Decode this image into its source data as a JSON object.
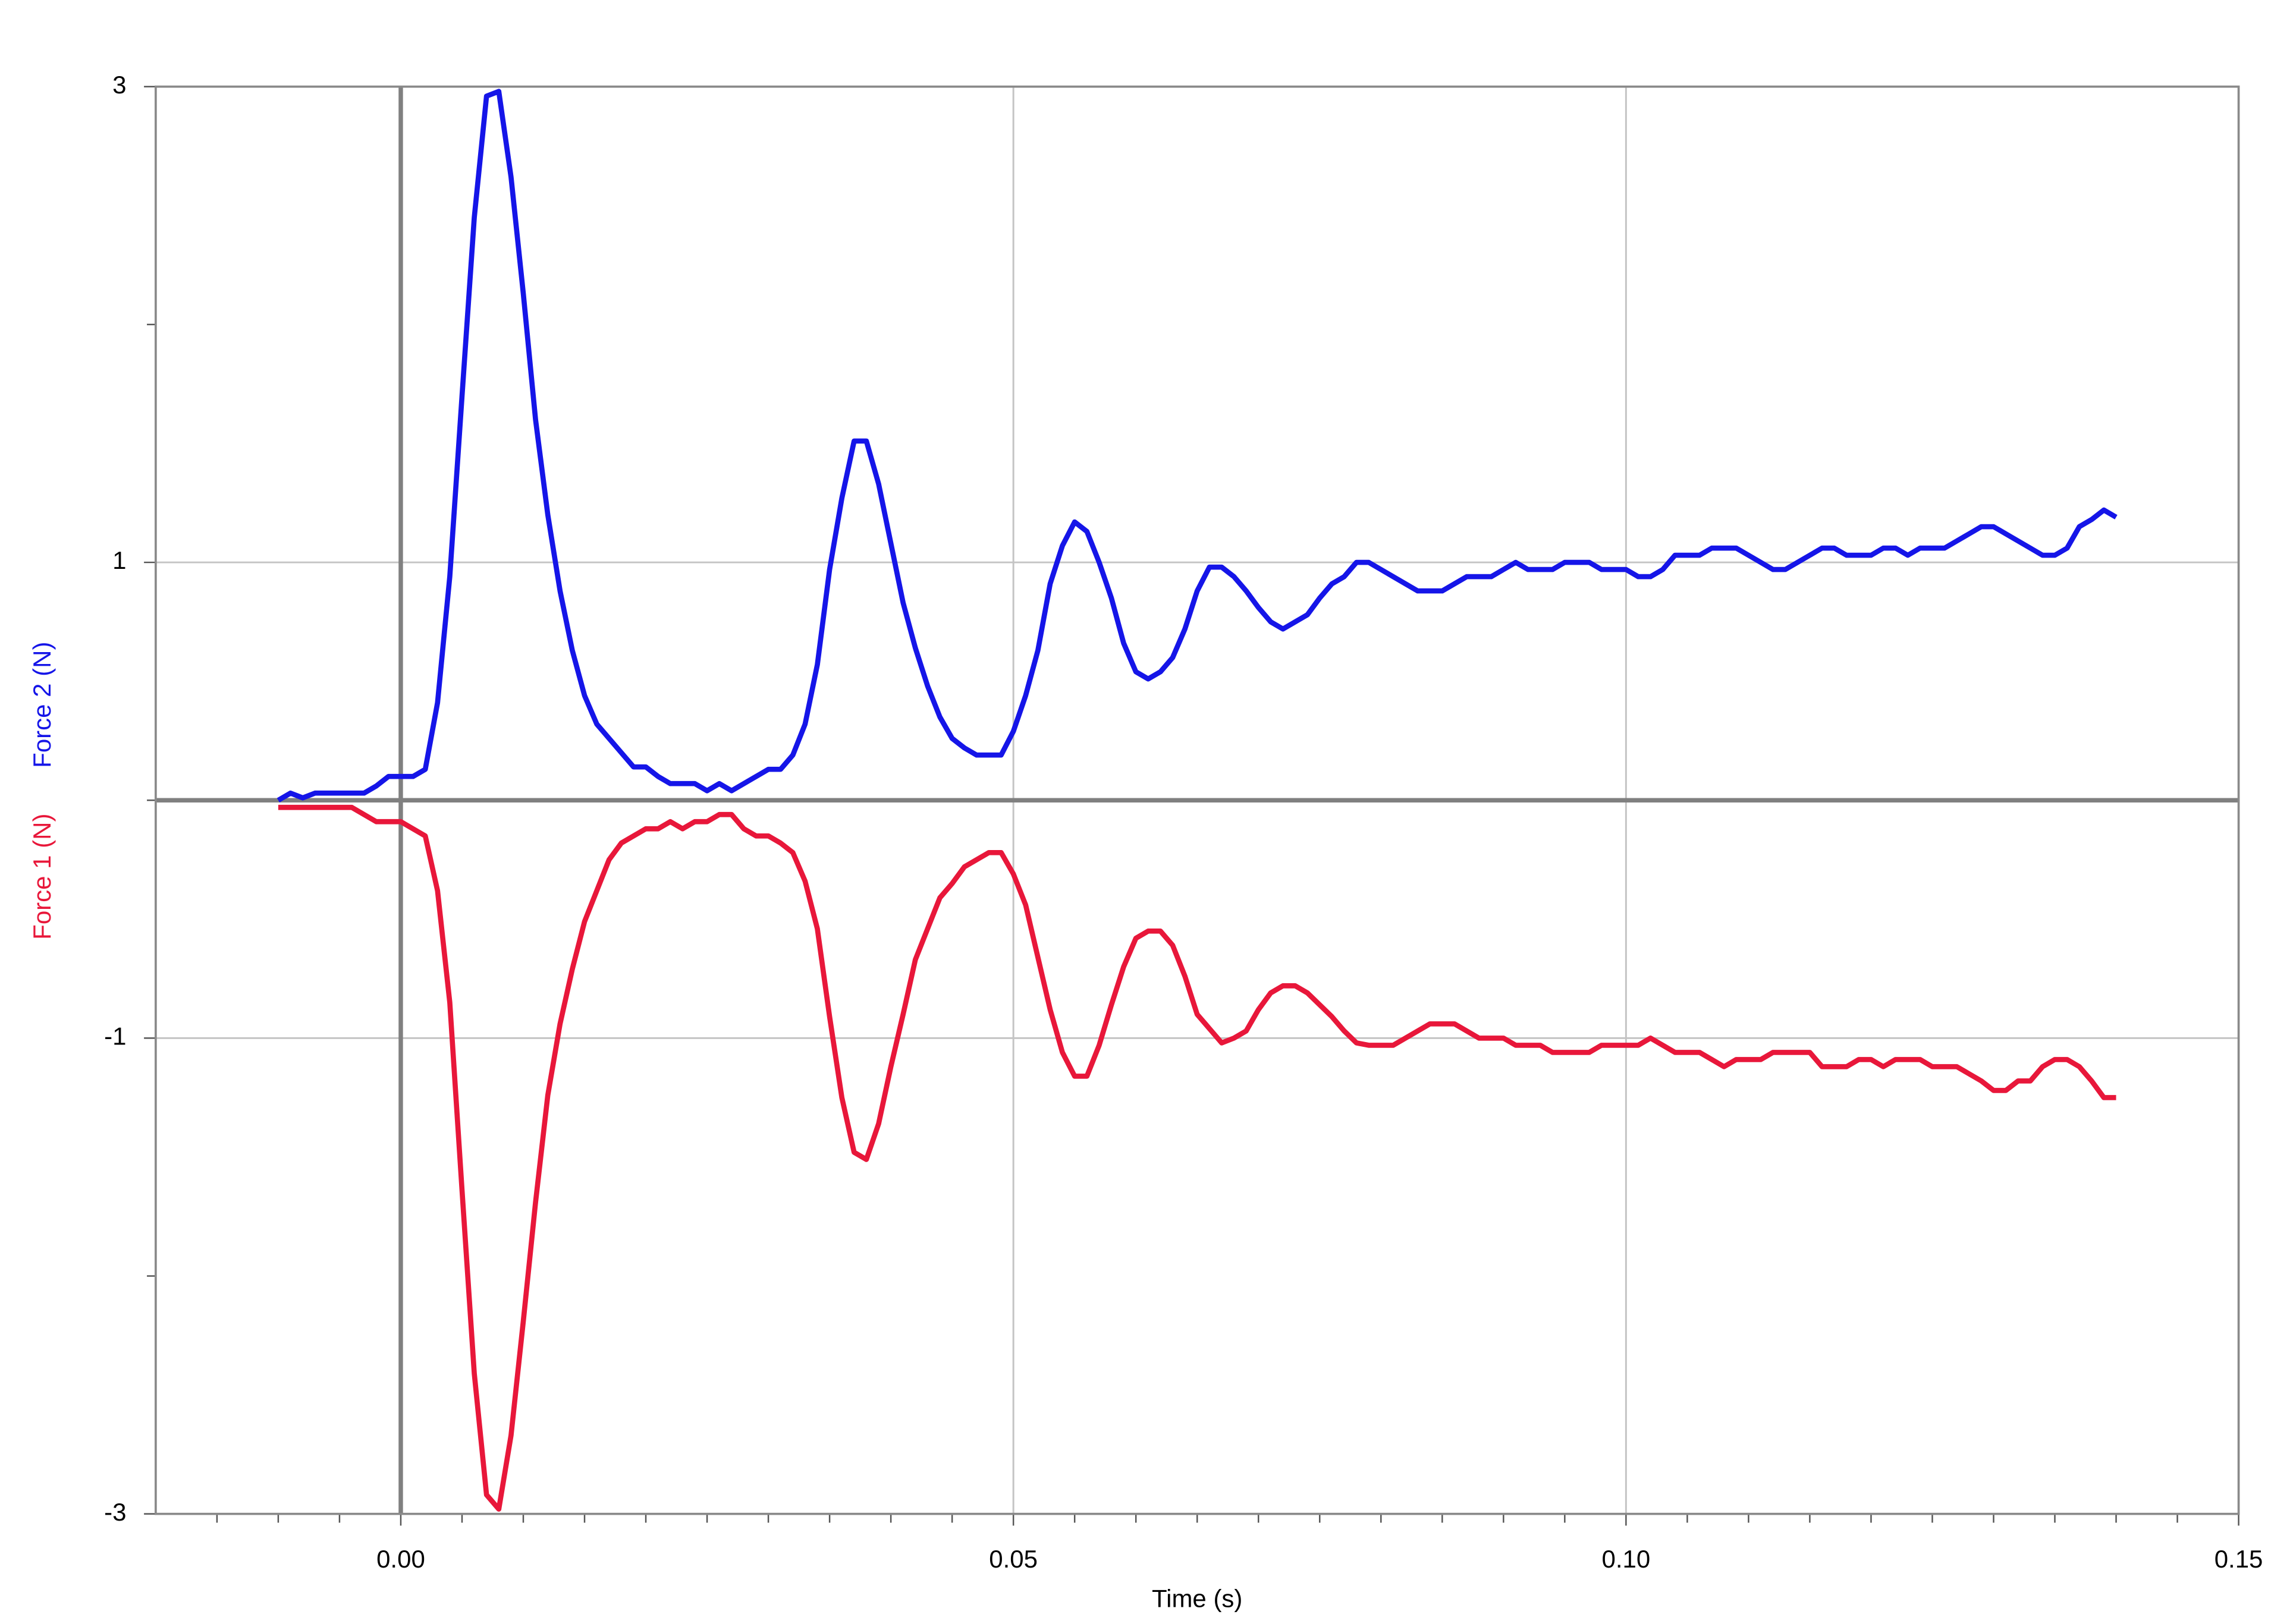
{
  "chart_data": {
    "type": "line",
    "x_label": "Time (s)",
    "xlim": [
      -0.02,
      0.15
    ],
    "xticks": [
      {
        "value": 0,
        "label": "0.00"
      },
      {
        "value": 0.05,
        "label": "0.05"
      },
      {
        "value": 0.1,
        "label": "0.10"
      },
      {
        "value": 0.15,
        "label": "0.15"
      }
    ],
    "xminorticks": [
      -0.015,
      -0.01,
      -0.005,
      0.005,
      0.01,
      0.015,
      0.02,
      0.025,
      0.03,
      0.035,
      0.04,
      0.045,
      0.055,
      0.06,
      0.065,
      0.07,
      0.075,
      0.08,
      0.085,
      0.09,
      0.095,
      0.105,
      0.11,
      0.115,
      0.12,
      0.125,
      0.13,
      0.135,
      0.14,
      0.145
    ],
    "ylim": [
      -3,
      3
    ],
    "yticks": [
      -3,
      -1,
      1,
      3
    ],
    "yminorticks": [
      -2,
      0,
      2
    ],
    "grid": true,
    "x": [
      -0.01,
      -0.009,
      -0.008,
      -0.007,
      -0.006,
      -0.005,
      -0.004,
      -0.003,
      -0.002,
      -0.001,
      0,
      0.001,
      0.002,
      0.003,
      0.004,
      0.005,
      0.006,
      0.007,
      0.008,
      0.009,
      0.01,
      0.011,
      0.012,
      0.013,
      0.014,
      0.015,
      0.016,
      0.017,
      0.018,
      0.019,
      0.02,
      0.021,
      0.022,
      0.023,
      0.024,
      0.025,
      0.026,
      0.027,
      0.028,
      0.029,
      0.03,
      0.031,
      0.032,
      0.033,
      0.034,
      0.035,
      0.036,
      0.037,
      0.038,
      0.039,
      0.04,
      0.041,
      0.042,
      0.043,
      0.044,
      0.045,
      0.046,
      0.047,
      0.048,
      0.049,
      0.05,
      0.051,
      0.052,
      0.053,
      0.054,
      0.055,
      0.056,
      0.057,
      0.058,
      0.059,
      0.06,
      0.061,
      0.062,
      0.063,
      0.064,
      0.065,
      0.066,
      0.067,
      0.068,
      0.069,
      0.07,
      0.071,
      0.072,
      0.073,
      0.074,
      0.075,
      0.076,
      0.077,
      0.078,
      0.079,
      0.08,
      0.081,
      0.082,
      0.083,
      0.084,
      0.085,
      0.086,
      0.087,
      0.088,
      0.089,
      0.09,
      0.091,
      0.092,
      0.093,
      0.094,
      0.095,
      0.096,
      0.097,
      0.098,
      0.099,
      0.1,
      0.101,
      0.102,
      0.103,
      0.104,
      0.105,
      0.106,
      0.107,
      0.108,
      0.109,
      0.11,
      0.111,
      0.112,
      0.113,
      0.114,
      0.115,
      0.116,
      0.117,
      0.118,
      0.119,
      0.12,
      0.121,
      0.122,
      0.123,
      0.124,
      0.125,
      0.126,
      0.127,
      0.128,
      0.129,
      0.13,
      0.131,
      0.132,
      0.133,
      0.134,
      0.135,
      0.136,
      0.137,
      0.138,
      0.139,
      0.14
    ],
    "series": [
      {
        "name": "Force 1 (N)",
        "color": "#e8173a",
        "values": [
          -0.03,
          -0.03,
          -0.03,
          -0.03,
          -0.03,
          -0.03,
          -0.03,
          -0.06,
          -0.09,
          -0.09,
          -0.09,
          -0.12,
          -0.15,
          -0.38,
          -0.85,
          -1.64,
          -2.41,
          -2.92,
          -2.98,
          -2.67,
          -2.19,
          -1.69,
          -1.24,
          -0.94,
          -0.71,
          -0.51,
          -0.38,
          -0.25,
          -0.18,
          -0.15,
          -0.12,
          -0.12,
          -0.09,
          -0.12,
          -0.09,
          -0.09,
          -0.06,
          -0.06,
          -0.12,
          -0.15,
          -0.15,
          -0.18,
          -0.22,
          -0.34,
          -0.54,
          -0.91,
          -1.25,
          -1.48,
          -1.51,
          -1.36,
          -1.12,
          -0.9,
          -0.67,
          -0.54,
          -0.41,
          -0.35,
          -0.28,
          -0.25,
          -0.22,
          -0.22,
          -0.31,
          -0.44,
          -0.66,
          -0.88,
          -1.06,
          -1.16,
          -1.16,
          -1.03,
          -0.86,
          -0.7,
          -0.58,
          -0.55,
          -0.55,
          -0.61,
          -0.74,
          -0.9,
          -0.96,
          -1.02,
          -1.0,
          -0.97,
          -0.88,
          -0.81,
          -0.78,
          -0.78,
          -0.81,
          -0.86,
          -0.91,
          -0.97,
          -1.02,
          -1.03,
          -1.03,
          -1.03,
          -1.0,
          -0.97,
          -0.94,
          -0.94,
          -0.94,
          -0.97,
          -1.0,
          -1.0,
          -1.0,
          -1.03,
          -1.03,
          -1.03,
          -1.06,
          -1.06,
          -1.06,
          -1.06,
          -1.03,
          -1.03,
          -1.03,
          -1.03,
          -1.0,
          -1.03,
          -1.06,
          -1.06,
          -1.06,
          -1.09,
          -1.12,
          -1.09,
          -1.09,
          -1.09,
          -1.06,
          -1.06,
          -1.06,
          -1.06,
          -1.12,
          -1.12,
          -1.12,
          -1.09,
          -1.09,
          -1.12,
          -1.09,
          -1.09,
          -1.09,
          -1.12,
          -1.12,
          -1.12,
          -1.15,
          -1.18,
          -1.22,
          -1.22,
          -1.18,
          -1.18,
          -1.12,
          -1.09,
          -1.09,
          -1.12,
          -1.18,
          -1.25,
          -1.25
        ]
      },
      {
        "name": "Force 2 (N)",
        "color": "#1515e8",
        "values": [
          0.0,
          0.03,
          0.01,
          0.03,
          0.03,
          0.03,
          0.03,
          0.03,
          0.06,
          0.1,
          0.1,
          0.1,
          0.13,
          0.41,
          0.94,
          1.7,
          2.45,
          2.96,
          2.98,
          2.62,
          2.13,
          1.6,
          1.2,
          0.88,
          0.63,
          0.44,
          0.32,
          0.26,
          0.2,
          0.14,
          0.14,
          0.1,
          0.07,
          0.07,
          0.07,
          0.04,
          0.07,
          0.04,
          0.07,
          0.1,
          0.13,
          0.13,
          0.19,
          0.32,
          0.57,
          0.97,
          1.27,
          1.51,
          1.51,
          1.33,
          1.08,
          0.83,
          0.64,
          0.48,
          0.35,
          0.26,
          0.22,
          0.19,
          0.19,
          0.19,
          0.29,
          0.44,
          0.63,
          0.91,
          1.07,
          1.17,
          1.13,
          1.0,
          0.85,
          0.66,
          0.54,
          0.51,
          0.54,
          0.6,
          0.72,
          0.88,
          0.98,
          0.98,
          0.94,
          0.88,
          0.81,
          0.75,
          0.72,
          0.75,
          0.78,
          0.85,
          0.91,
          0.94,
          1.0,
          1.0,
          0.97,
          0.94,
          0.91,
          0.88,
          0.88,
          0.88,
          0.91,
          0.94,
          0.94,
          0.94,
          0.97,
          1.0,
          0.97,
          0.97,
          0.97,
          1.0,
          1.0,
          1.0,
          0.97,
          0.97,
          0.97,
          0.94,
          0.94,
          0.97,
          1.03,
          1.03,
          1.03,
          1.06,
          1.06,
          1.06,
          1.03,
          1.0,
          0.97,
          0.97,
          1.0,
          1.03,
          1.06,
          1.06,
          1.03,
          1.03,
          1.03,
          1.06,
          1.06,
          1.03,
          1.06,
          1.06,
          1.06,
          1.09,
          1.12,
          1.15,
          1.15,
          1.12,
          1.09,
          1.06,
          1.03,
          1.03,
          1.06,
          1.15,
          1.18,
          1.22,
          1.19
        ]
      }
    ]
  }
}
